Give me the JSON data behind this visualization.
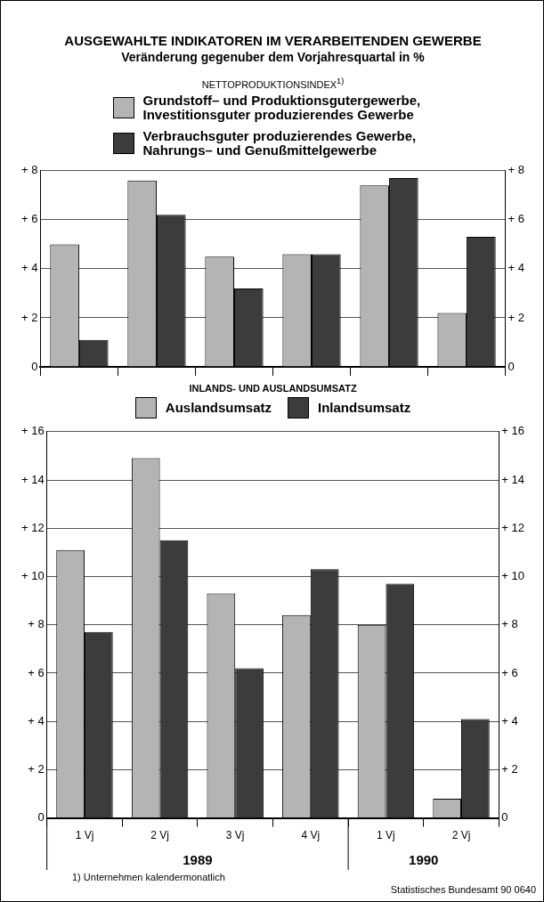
{
  "chart_data": [
    {
      "type": "bar",
      "title": "AUSGEWAHLTE INDIKATOREN IM VERARBEITENDEN GEWERBE",
      "subtitle": "Veränderung gegenuber dem Vorjahresquartal in %",
      "legend_title": "NETTOPRODUKTIONSINDEX$^{1)}$",
      "categories": [
        null,
        null,
        null,
        null,
        null,
        null
      ],
      "series": [
        {
          "name": "Grundstoff– und Produktionsgutergewerbe,\nInvestitionsguter produzierendes Gewerbe",
          "color": "#b4b4b4",
          "values": [
            5.0,
            7.6,
            4.5,
            4.6,
            7.4,
            2.2
          ]
        },
        {
          "name": "Verbrauchsguter produzierendes Gewerbe,\nNahrungs– und Genußmittelgewerbe",
          "color": "#3c3c3c",
          "values": [
            1.1,
            6.2,
            3.2,
            4.6,
            7.7,
            5.3
          ]
        }
      ],
      "ylim": [
        0,
        8
      ],
      "yticks": [
        0,
        {
          "value": 2,
          "label": "+ 2"
        },
        {
          "value": 4,
          "label": "+ 4"
        },
        {
          "value": 6,
          "label": "+ 6"
        },
        {
          "value": 8,
          "label": "+ 8"
        }
      ],
      "y2lim": [
        0,
        8
      ],
      "y2ticks": [
        0,
        {
          "value": 2,
          "label": "+ 2"
        },
        {
          "value": 4,
          "label": "+ 4"
        },
        {
          "value": 6,
          "label": "+ 6"
        },
        {
          "value": 8,
          "label": "+ 8"
        }
      ],
      "tick_labels": "y",
      "grid": "y",
      "legend": "top"
    },
    {
      "type": "bar",
      "title": "INLANDS- UND AUSLANDSUMSATZ",
      "categories": [
        "1 Vj",
        "2 Vj",
        "3 Vj",
        "4 Vj",
        "1 Vj",
        "2 Vj"
      ],
      "series": [
        {
          "name": "Auslandsumsatz",
          "color": "#b4b4b4",
          "values": [
            11.1,
            14.9,
            9.3,
            8.4,
            8.0,
            0.8
          ]
        },
        {
          "name": "Inlandsumsatz",
          "color": "#3c3c3c",
          "values": [
            7.7,
            11.5,
            6.2,
            10.3,
            9.7,
            4.1
          ]
        }
      ],
      "ylim": [
        0,
        16
      ],
      "yticks": [
        0,
        {
          "value": 2,
          "label": "+ 2"
        },
        {
          "value": 4,
          "label": "+ 4"
        },
        {
          "value": 6,
          "label": "+ 6"
        },
        {
          "value": 8,
          "label": "+ 8"
        },
        {
          "value": 10,
          "label": "+ 10"
        },
        {
          "value": 12,
          "label": "+ 12"
        },
        {
          "value": 14,
          "label": "+ 14"
        },
        {
          "value": 16,
          "label": "+ 16"
        }
      ],
      "y2lim": [
        0,
        16
      ],
      "y2ticks": [
        0,
        {
          "value": 2,
          "label": "+ 2"
        },
        {
          "value": 4,
          "label": "+ 4"
        },
        {
          "value": 6,
          "label": "+ 6"
        },
        {
          "value": 8,
          "label": "+ 8"
        },
        {
          "value": 10,
          "label": "+ 10"
        },
        {
          "value": 12,
          "label": "+ 12"
        },
        {
          "value": 14,
          "label": "+ 14"
        },
        {
          "value": 16,
          "label": "+ 16"
        }
      ],
      "grid": "y",
      "legend": "top",
      "annotations": [
        "1989",
        "1990",
        "1) Unternehmen kalendermonatlich",
        "Statistisches Bundesamt 90 0640"
      ]
    }
  ]
}
